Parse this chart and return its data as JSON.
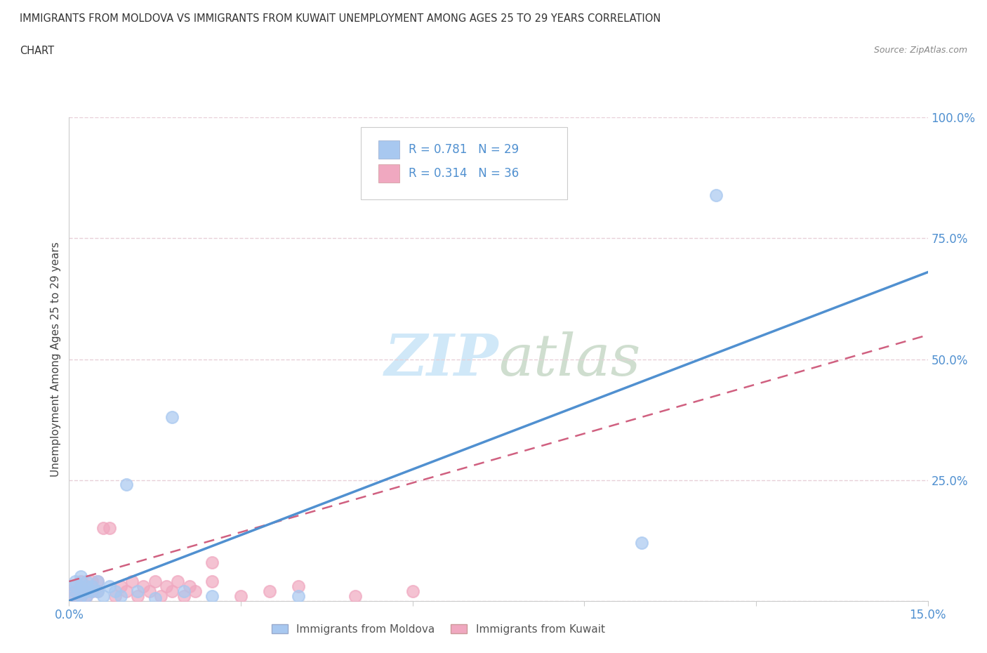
{
  "title_line1": "IMMIGRANTS FROM MOLDOVA VS IMMIGRANTS FROM KUWAIT UNEMPLOYMENT AMONG AGES 25 TO 29 YEARS CORRELATION",
  "title_line2": "CHART",
  "source": "Source: ZipAtlas.com",
  "ylabel": "Unemployment Among Ages 25 to 29 years",
  "xlim": [
    0.0,
    0.15
  ],
  "ylim": [
    0.0,
    1.0
  ],
  "xticks": [
    0.0,
    0.03,
    0.06,
    0.09,
    0.12,
    0.15
  ],
  "yticks": [
    0.0,
    0.25,
    0.5,
    0.75,
    1.0
  ],
  "xtick_labels": [
    "0.0%",
    "",
    "",
    "",
    "",
    "15.0%"
  ],
  "ytick_labels": [
    "",
    "25.0%",
    "50.0%",
    "75.0%",
    "100.0%"
  ],
  "moldova_R": 0.781,
  "moldova_N": 29,
  "kuwait_R": 0.314,
  "kuwait_N": 36,
  "moldova_color": "#a8c8f0",
  "kuwait_color": "#f0a8c0",
  "moldova_line_color": "#5090d0",
  "kuwait_line_color": "#d06080",
  "background_color": "#ffffff",
  "grid_color": "#e8d0d8",
  "watermark_color": "#d0e8f8",
  "moldova_label": "Immigrants from Moldova",
  "kuwait_label": "Immigrants from Kuwait",
  "moldova_x": [
    0.001,
    0.001,
    0.001,
    0.001,
    0.002,
    0.002,
    0.002,
    0.002,
    0.003,
    0.003,
    0.003,
    0.003,
    0.004,
    0.004,
    0.005,
    0.005,
    0.006,
    0.007,
    0.008,
    0.009,
    0.01,
    0.012,
    0.015,
    0.018,
    0.02,
    0.025,
    0.04,
    0.1,
    0.113
  ],
  "moldova_y": [
    0.01,
    0.02,
    0.03,
    0.04,
    0.01,
    0.02,
    0.03,
    0.05,
    0.01,
    0.02,
    0.03,
    0.04,
    0.02,
    0.03,
    0.02,
    0.04,
    0.01,
    0.03,
    0.02,
    0.01,
    0.24,
    0.02,
    0.005,
    0.38,
    0.02,
    0.01,
    0.01,
    0.12,
    0.84
  ],
  "kuwait_x": [
    0.001,
    0.001,
    0.001,
    0.002,
    0.002,
    0.002,
    0.003,
    0.003,
    0.004,
    0.004,
    0.005,
    0.005,
    0.006,
    0.007,
    0.008,
    0.009,
    0.01,
    0.011,
    0.012,
    0.013,
    0.014,
    0.015,
    0.016,
    0.017,
    0.018,
    0.019,
    0.02,
    0.021,
    0.022,
    0.025,
    0.03,
    0.035,
    0.04,
    0.05,
    0.06,
    0.025
  ],
  "kuwait_y": [
    0.01,
    0.02,
    0.03,
    0.01,
    0.02,
    0.04,
    0.01,
    0.03,
    0.02,
    0.04,
    0.02,
    0.04,
    0.15,
    0.15,
    0.01,
    0.03,
    0.02,
    0.04,
    0.01,
    0.03,
    0.02,
    0.04,
    0.01,
    0.03,
    0.02,
    0.04,
    0.01,
    0.03,
    0.02,
    0.04,
    0.01,
    0.02,
    0.03,
    0.01,
    0.02,
    0.08
  ],
  "moldova_line_x": [
    0.0,
    0.15
  ],
  "moldova_line_y": [
    0.0,
    0.68
  ],
  "kuwait_line_x": [
    0.0,
    0.15
  ],
  "kuwait_line_y": [
    0.04,
    0.55
  ]
}
